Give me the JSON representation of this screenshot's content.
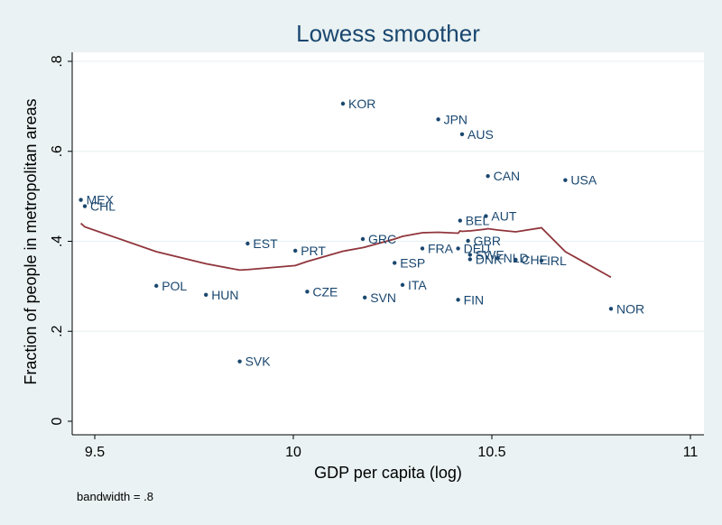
{
  "chart_data": {
    "type": "scatter",
    "title": "Lowess smoother",
    "xlabel": "GDP per capita (log)",
    "ylabel": "Fraction of people in metropolitan areas",
    "note": "bandwidth = .8",
    "xlim": [
      9.45,
      11.0
    ],
    "ylim": [
      0,
      0.8
    ],
    "xticks": [
      {
        "value": 9.5,
        "label": "9.5"
      },
      {
        "value": 10,
        "label": "10"
      },
      {
        "value": 10.5,
        "label": "10.5"
      },
      {
        "value": 11,
        "label": "11"
      }
    ],
    "yticks": [
      {
        "value": 0,
        "label": "0"
      },
      {
        "value": 0.2,
        "label": ".2"
      },
      {
        "value": 0.4,
        "label": ".4"
      },
      {
        "value": 0.6,
        "label": ".6"
      },
      {
        "value": 0.8,
        "label": ".8"
      }
    ],
    "grid": true,
    "points": [
      {
        "label": "KOR",
        "x": 10.125,
        "y": 0.706
      },
      {
        "label": "JPN",
        "x": 10.365,
        "y": 0.671
      },
      {
        "label": "AUS",
        "x": 10.425,
        "y": 0.638
      },
      {
        "label": "CAN",
        "x": 10.49,
        "y": 0.545
      },
      {
        "label": "USA",
        "x": 10.685,
        "y": 0.536
      },
      {
        "label": "MEX",
        "x": 9.465,
        "y": 0.492
      },
      {
        "label": "CHL",
        "x": 9.475,
        "y": 0.478
      },
      {
        "label": "AUT",
        "x": 10.485,
        "y": 0.456
      },
      {
        "label": "BEL",
        "x": 10.42,
        "y": 0.446
      },
      {
        "label": "GRC",
        "x": 10.175,
        "y": 0.405
      },
      {
        "label": "GBR",
        "x": 10.44,
        "y": 0.401
      },
      {
        "label": "EST",
        "x": 9.885,
        "y": 0.395
      },
      {
        "label": "FRA",
        "x": 10.325,
        "y": 0.384
      },
      {
        "label": "DEU",
        "x": 10.415,
        "y": 0.384
      },
      {
        "label": "PRT",
        "x": 10.005,
        "y": 0.379
      },
      {
        "label": "SWE",
        "x": 10.445,
        "y": 0.37
      },
      {
        "label": "NLD",
        "x": 10.515,
        "y": 0.363
      },
      {
        "label": "DNK",
        "x": 10.445,
        "y": 0.36
      },
      {
        "label": "CHE",
        "x": 10.56,
        "y": 0.359
      },
      {
        "label": "IRL",
        "x": 10.625,
        "y": 0.357
      },
      {
        "label": "ESP",
        "x": 10.255,
        "y": 0.352
      },
      {
        "label": "ITA",
        "x": 10.275,
        "y": 0.303
      },
      {
        "label": "POL",
        "x": 9.655,
        "y": 0.301
      },
      {
        "label": "CZE",
        "x": 10.035,
        "y": 0.288
      },
      {
        "label": "HUN",
        "x": 9.78,
        "y": 0.281
      },
      {
        "label": "SVN",
        "x": 10.18,
        "y": 0.275
      },
      {
        "label": "FIN",
        "x": 10.415,
        "y": 0.27
      },
      {
        "label": "NOR",
        "x": 10.8,
        "y": 0.25
      },
      {
        "label": "SVK",
        "x": 9.865,
        "y": 0.133
      }
    ],
    "lowess": {
      "name": "",
      "color": "#90353b",
      "x": [
        9.465,
        9.475,
        9.655,
        9.78,
        9.865,
        9.885,
        10.005,
        10.035,
        10.125,
        10.175,
        10.18,
        10.255,
        10.275,
        10.325,
        10.365,
        10.415,
        10.42,
        10.425,
        10.44,
        10.445,
        10.485,
        10.49,
        10.515,
        10.56,
        10.625,
        10.685,
        10.8
      ],
      "y": [
        0.44,
        0.432,
        0.377,
        0.35,
        0.336,
        0.337,
        0.346,
        0.355,
        0.378,
        0.386,
        0.387,
        0.405,
        0.411,
        0.419,
        0.42,
        0.418,
        0.423,
        0.422,
        0.423,
        0.423,
        0.427,
        0.428,
        0.425,
        0.421,
        0.43,
        0.377,
        0.32
      ]
    },
    "point_color": "#1a476f",
    "plot_bg": "#ffffff",
    "outer_bg": "#eaf2f3"
  }
}
